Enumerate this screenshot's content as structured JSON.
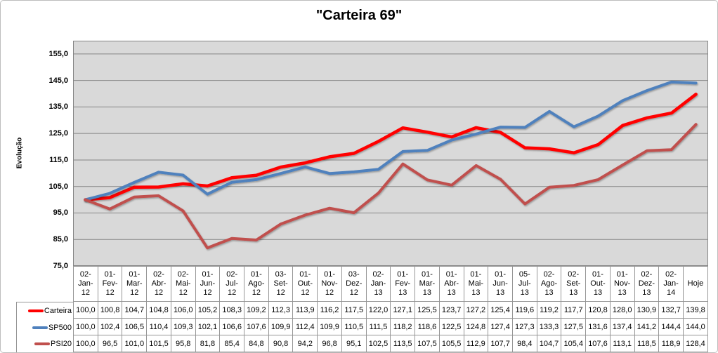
{
  "title": "\"Carteira 69\"",
  "chart_data": {
    "type": "line",
    "title": "\"Carteira 69\"",
    "ylabel": "Evolução",
    "xlabel": "",
    "ylim": [
      75,
      160
    ],
    "ytick_step": 10,
    "ytick_labels": [
      "155,0",
      "145,0",
      "135,0",
      "125,0",
      "115,0",
      "105,0",
      "95,0",
      "85,0",
      "75,0"
    ],
    "grid": true,
    "legend_position": "table-left",
    "plot_bg_color": "#D9D9D9",
    "gridline_color": "#858585",
    "categories": [
      "02-Jan-12",
      "01-Fev-12",
      "01-Mar-12",
      "02-Abr-12",
      "02-Mai-12",
      "01-Jun-12",
      "02-Jul-12",
      "01-Ago-12",
      "03-Set-12",
      "01-Out-12",
      "01-Nov-12",
      "03-Dez-12",
      "02-Jan-13",
      "01-Fev-13",
      "01-Mar-13",
      "01-Abr-13",
      "01-Mai-13",
      "01-Jun-13",
      "05-Jul-13",
      "02-Ago-13",
      "02-Set-13",
      "01-Out-13",
      "01-Nov-13",
      "02-Dez-13",
      "02-Jan-14",
      "Hoje"
    ],
    "series": [
      {
        "name": "Carteira",
        "color": "#FF0000",
        "values": [
          100.0,
          100.8,
          104.7,
          104.8,
          106.0,
          105.2,
          108.3,
          109.2,
          112.3,
          113.9,
          116.2,
          117.5,
          122.0,
          127.1,
          125.5,
          123.7,
          127.2,
          125.4,
          119.6,
          119.2,
          117.7,
          120.8,
          128.0,
          130.9,
          132.7,
          139.8
        ]
      },
      {
        "name": "SP500",
        "color": "#4F81BD",
        "values": [
          100.0,
          102.4,
          106.5,
          110.4,
          109.3,
          102.1,
          106.6,
          107.6,
          109.9,
          112.4,
          109.9,
          110.5,
          111.5,
          118.2,
          118.6,
          122.5,
          124.8,
          127.4,
          127.3,
          133.3,
          127.5,
          131.6,
          137.4,
          141.2,
          144.4,
          144.0
        ]
      },
      {
        "name": "PSI20",
        "color": "#C0504D",
        "values": [
          100.0,
          96.5,
          101.0,
          101.5,
          95.8,
          81.8,
          85.4,
          84.8,
          90.8,
          94.2,
          96.8,
          95.1,
          102.5,
          113.5,
          107.5,
          105.5,
          112.9,
          107.7,
          98.4,
          104.7,
          105.4,
          107.6,
          113.1,
          118.5,
          118.9,
          128.4
        ]
      }
    ]
  }
}
